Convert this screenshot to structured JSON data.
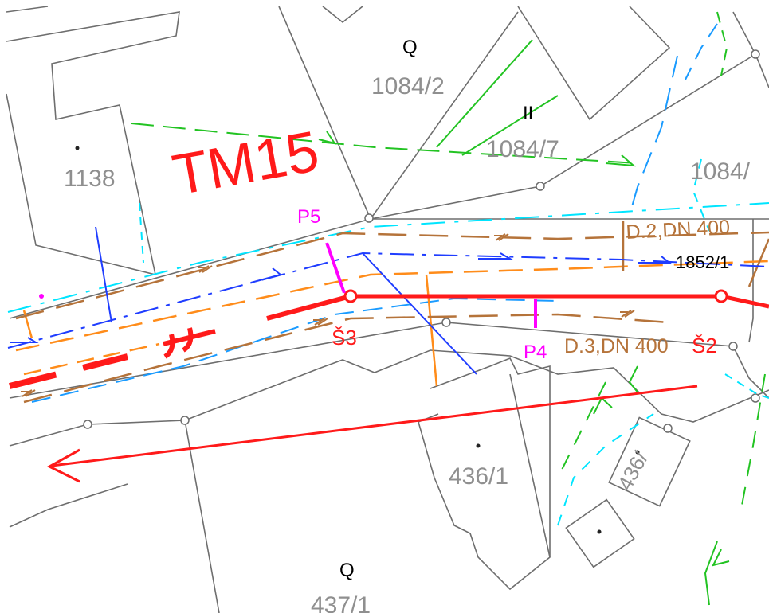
{
  "map": {
    "title": "TM15",
    "parcels": {
      "p1084_2": "1084/2",
      "p1084_7": "1084/7",
      "p1084": "1084/",
      "p1138": "1138",
      "p436_1": "436/1",
      "p436": "436/",
      "p437_1": "437/1"
    },
    "symbols": {
      "q_top": "Q",
      "ii": "II",
      "q_bottom": "Q"
    },
    "markers": {
      "p5": "P5",
      "p4": "P4",
      "s3": "Š3",
      "s2": "Š2"
    },
    "pipes": {
      "d2": "D.2,DN 400",
      "d3": "D.3,DN 400",
      "label_1852": "1852/1"
    },
    "colors": {
      "background": "#ffffff",
      "boundary": "#6e6e6e",
      "sewer_main": "#ff1a1a",
      "marker": "#ff00ff",
      "pipe": "#b5733a",
      "water": "#1f3dff",
      "dashed_cyan": "#00e5ff",
      "orange": "#ff8c1a",
      "green": "#22c322"
    }
  }
}
